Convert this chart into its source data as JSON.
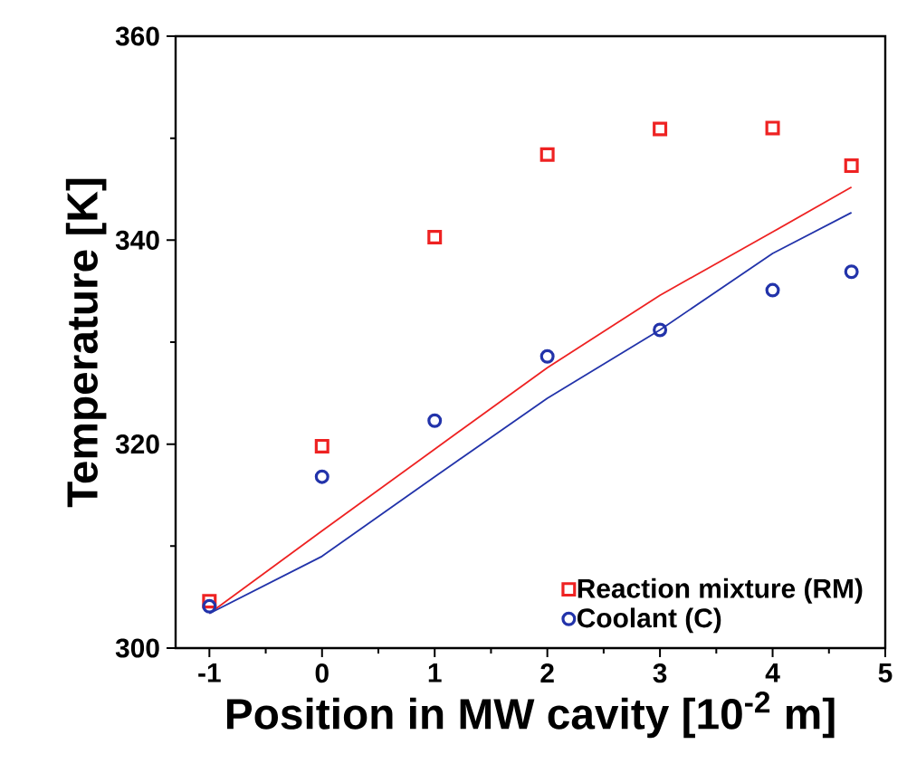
{
  "chart_data": {
    "type": "scatter",
    "xlabel": "Position in MW cavity [10$^{-2}$ m]",
    "ylabel": "Temperature [K]",
    "xlim": [
      -1.3,
      5
    ],
    "ylim": [
      300,
      360
    ],
    "xticks": [
      -1,
      0,
      1,
      2,
      3,
      4,
      5
    ],
    "yticks": [
      300,
      320,
      340,
      360
    ],
    "legend": "bottom right",
    "grid": false,
    "series": [
      {
        "name": "Reaction mixture (RM)",
        "marker": "square",
        "color": "#ee2222",
        "x": [
          -1,
          0,
          1,
          2,
          3,
          4,
          4.7
        ],
        "values": [
          304.6,
          319.8,
          340.3,
          348.4,
          350.9,
          351,
          347.3
        ]
      },
      {
        "name": "Coolant (C)",
        "marker": "circle",
        "color": "#2233aa",
        "x": [
          -1,
          0,
          1,
          2,
          3,
          4,
          4.7
        ],
        "values": [
          304.1,
          316.8,
          322.3,
          328.6,
          331.2,
          335.1,
          336.9
        ]
      },
      {
        "type": "line",
        "line_style": "solid",
        "color": "#ee2222",
        "x": [
          -1,
          0,
          1,
          2,
          3,
          4,
          4.7
        ],
        "values": [
          303.4,
          311.5,
          319.5,
          327.5,
          334.6,
          340.8,
          345.2
        ]
      },
      {
        "type": "line",
        "line_style": "solid",
        "color": "#2233aa",
        "x": [
          -1,
          0,
          1,
          2,
          3,
          4,
          4.7
        ],
        "values": [
          303.4,
          309,
          316.8,
          324.5,
          331.2,
          338.7,
          342.7
        ]
      }
    ]
  }
}
